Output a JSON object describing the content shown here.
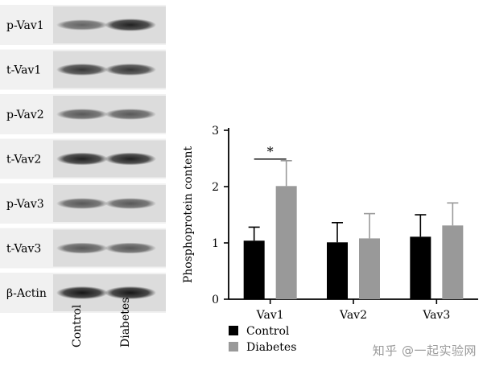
{
  "blot": {
    "rows": [
      {
        "label": "p-Vav1",
        "control": 0.55,
        "diabetes": 0.85
      },
      {
        "label": "t-Vav1",
        "control": 0.75,
        "diabetes": 0.75
      },
      {
        "label": "p-Vav2",
        "control": 0.6,
        "diabetes": 0.6
      },
      {
        "label": "t-Vav2",
        "control": 0.85,
        "diabetes": 0.85
      },
      {
        "label": "p-Vav3",
        "control": 0.6,
        "diabetes": 0.6
      },
      {
        "label": "t-Vav3",
        "control": 0.6,
        "diabetes": 0.6
      },
      {
        "label": "β-Actin",
        "control": 0.9,
        "diabetes": 0.9
      }
    ],
    "lanes": [
      "Control",
      "Diabetes"
    ]
  },
  "chart_data": {
    "type": "bar",
    "categories": [
      "Vav1",
      "Vav2",
      "Vav3"
    ],
    "series": [
      {
        "name": "Control",
        "values": [
          1.04,
          1.01,
          1.11
        ],
        "errors": [
          0.24,
          0.35,
          0.39
        ],
        "color": "#000000"
      },
      {
        "name": "Diabetes",
        "values": [
          2.01,
          1.08,
          1.31
        ],
        "errors": [
          0.45,
          0.44,
          0.4
        ],
        "color": "#999999"
      }
    ],
    "ylabel": "Phosphoprotein content",
    "xlabel": "",
    "ylim": [
      0,
      3
    ],
    "yticks": [
      0,
      1,
      2,
      3
    ],
    "grid": false,
    "legend": "bottom-left",
    "annotations": [
      {
        "text": "*",
        "between": [
          "Control",
          "Diabetes"
        ],
        "category": "Vav1"
      }
    ]
  },
  "watermark": "知乎 @一起实验网"
}
